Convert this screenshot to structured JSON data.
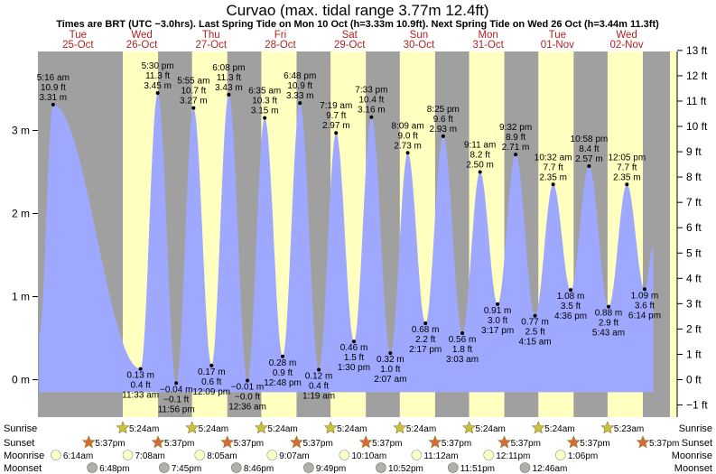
{
  "title": "Curvao (max. tidal range 3.77m 12.4ft)",
  "subtitle": "Times are BRT (UTC −3.0hrs). Last Spring Tide on Mon 10 Oct (h=3.33m 10.9ft). Next Spring Tide on Wed 26 Oct (h=3.44m 11.3ft)",
  "days": [
    {
      "dow": "Tue",
      "date": "25-Oct"
    },
    {
      "dow": "Wed",
      "date": "26-Oct"
    },
    {
      "dow": "Thu",
      "date": "27-Oct"
    },
    {
      "dow": "Fri",
      "date": "28-Oct"
    },
    {
      "dow": "Sat",
      "date": "29-Oct"
    },
    {
      "dow": "Sun",
      "date": "30-Oct"
    },
    {
      "dow": "Mon",
      "date": "31-Oct"
    },
    {
      "dow": "Tue",
      "date": "01-Nov"
    },
    {
      "dow": "Wed",
      "date": "02-Nov"
    }
  ],
  "row_labels": {
    "sunrise": "Sunrise",
    "sunset": "Sunset",
    "moonrise": "Moonrise",
    "moonset": "Moonset"
  },
  "colors": {
    "night": "#a0a0a0",
    "day": "#ffffc0",
    "water": "#9ea8ff",
    "sun": "#c9c240",
    "sunset_star": "#d86a3a",
    "moon_rise": "#ffffc8",
    "moon_set": "#b0b0a8",
    "day_label": "#b22222"
  },
  "chart_data": {
    "type": "area",
    "title": "Curvao (max. tidal range 3.77m 12.4ft)",
    "x_unit": "hours from 00:00 Tue 25-Oct",
    "xlim": [
      0,
      219
    ],
    "ylim_m": [
      -0.45,
      3.95
    ],
    "ylim_ft": [
      -1.48,
      12.96
    ],
    "y_ticks_m": [
      {
        "v": 0,
        "label": "0 m"
      },
      {
        "v": 1,
        "label": "1 m"
      },
      {
        "v": 2,
        "label": "2 m"
      },
      {
        "v": 3,
        "label": "3 m"
      }
    ],
    "y_ticks_ft": [
      {
        "v": -1,
        "label": "−1 ft"
      },
      {
        "v": 0,
        "label": "0 ft"
      },
      {
        "v": 1,
        "label": "1 ft"
      },
      {
        "v": 2,
        "label": "2 ft"
      },
      {
        "v": 3,
        "label": "3 ft"
      },
      {
        "v": 4,
        "label": "4 ft"
      },
      {
        "v": 5,
        "label": "5 ft"
      },
      {
        "v": 6,
        "label": "6 ft"
      },
      {
        "v": 7,
        "label": "7 ft"
      },
      {
        "v": 8,
        "label": "8 ft"
      },
      {
        "v": 9,
        "label": "9 ft"
      },
      {
        "v": 10,
        "label": "10 ft"
      },
      {
        "v": 11,
        "label": "11 ft"
      },
      {
        "v": 12,
        "label": "12 ft"
      },
      {
        "v": 13,
        "label": "13 ft"
      }
    ],
    "series": [
      {
        "values": [
          {
            "t": 5.27,
            "m": 3.31,
            "time": "5:16 am",
            "ft": "10.9 ft",
            "mlab": "3.31 m",
            "kind": "high"
          },
          {
            "t": 35.55,
            "m": 0.13,
            "time": "11:33 am",
            "ft": "0.4 ft",
            "mlab": "0.13 m",
            "kind": "low"
          },
          {
            "t": 41.5,
            "m": 3.45,
            "time": "5:30 pm",
            "ft": "11.3 ft",
            "mlab": "3.45 m",
            "kind": "high"
          },
          {
            "t": 47.93,
            "m": -0.04,
            "time": "11:56 pm",
            "ft": "−0.1 ft",
            "mlab": "−0.04 m",
            "kind": "low"
          },
          {
            "t": 53.92,
            "m": 3.27,
            "time": "5:55 am",
            "ft": "10.7 ft",
            "mlab": "3.27 m",
            "kind": "high"
          },
          {
            "t": 60.15,
            "m": 0.17,
            "time": "12:09 pm",
            "ft": "0.6 ft",
            "mlab": "0.17 m",
            "kind": "low"
          },
          {
            "t": 66.13,
            "m": 3.43,
            "time": "6:08 pm",
            "ft": "11.3 ft",
            "mlab": "3.43 m",
            "kind": "high"
          },
          {
            "t": 72.6,
            "m": -0.01,
            "time": "12:36 am",
            "ft": "−0.0 ft",
            "mlab": "−0.01 m",
            "kind": "low"
          },
          {
            "t": 78.58,
            "m": 3.15,
            "time": "6:35 am",
            "ft": "10.3 ft",
            "mlab": "3.15 m",
            "kind": "high"
          },
          {
            "t": 84.8,
            "m": 0.28,
            "time": "12:48 pm",
            "ft": "0.9 ft",
            "mlab": "0.28 m",
            "kind": "low"
          },
          {
            "t": 90.8,
            "m": 3.33,
            "time": "6:48 pm",
            "ft": "10.9 ft",
            "mlab": "3.33 m",
            "kind": "high"
          },
          {
            "t": 97.32,
            "m": 0.12,
            "time": "1:19 am",
            "ft": "0.4 ft",
            "mlab": "0.12 m",
            "kind": "low"
          },
          {
            "t": 103.32,
            "m": 2.97,
            "time": "7:19 am",
            "ft": "9.7 ft",
            "mlab": "2.97 m",
            "kind": "high"
          },
          {
            "t": 109.5,
            "m": 0.46,
            "time": "1:30 pm",
            "ft": "1.5 ft",
            "mlab": "0.46 m",
            "kind": "low"
          },
          {
            "t": 115.55,
            "m": 3.16,
            "time": "7:33 pm",
            "ft": "10.4 ft",
            "mlab": "3.16 m",
            "kind": "high"
          },
          {
            "t": 122.12,
            "m": 0.32,
            "time": "2:07 am",
            "ft": "1.0 ft",
            "mlab": "0.32 m",
            "kind": "low"
          },
          {
            "t": 128.15,
            "m": 2.73,
            "time": "8:09 am",
            "ft": "9.0 ft",
            "mlab": "2.73 m",
            "kind": "high"
          },
          {
            "t": 134.28,
            "m": 0.68,
            "time": "2:17 pm",
            "ft": "2.2 ft",
            "mlab": "0.68 m",
            "kind": "low"
          },
          {
            "t": 140.42,
            "m": 2.93,
            "time": "8:25 pm",
            "ft": "9.6 ft",
            "mlab": "2.93 m",
            "kind": "high"
          },
          {
            "t": 147.05,
            "m": 0.56,
            "time": "3:03 am",
            "ft": "1.8 ft",
            "mlab": "0.56 m",
            "kind": "low"
          },
          {
            "t": 153.18,
            "m": 2.5,
            "time": "9:11 am",
            "ft": "8.2 ft",
            "mlab": "2.50 m",
            "kind": "high"
          },
          {
            "t": 159.28,
            "m": 0.91,
            "time": "3:17 pm",
            "ft": "3.0 ft",
            "mlab": "0.91 m",
            "kind": "low"
          },
          {
            "t": 165.53,
            "m": 2.71,
            "time": "9:32 pm",
            "ft": "8.9 ft",
            "mlab": "2.71 m",
            "kind": "high"
          },
          {
            "t": 172.25,
            "m": 0.77,
            "time": "4:15 am",
            "ft": "2.5 ft",
            "mlab": "0.77 m",
            "kind": "low"
          },
          {
            "t": 178.53,
            "m": 2.35,
            "time": "10:32 am",
            "ft": "7.7 ft",
            "mlab": "2.35 m",
            "kind": "high"
          },
          {
            "t": 184.6,
            "m": 1.08,
            "time": "4:36 pm",
            "ft": "3.5 ft",
            "mlab": "1.08 m",
            "kind": "low"
          },
          {
            "t": 190.97,
            "m": 2.57,
            "time": "10:58 pm",
            "ft": "8.4 ft",
            "mlab": "2.57 m",
            "kind": "high"
          },
          {
            "t": 197.72,
            "m": 0.88,
            "time": "5:43 am",
            "ft": "2.9 ft",
            "mlab": "0.88 m",
            "kind": "low"
          },
          {
            "t": 204.08,
            "m": 2.35,
            "time": "12:05 pm",
            "ft": "7.7 ft",
            "mlab": "2.35 m",
            "kind": "high"
          },
          {
            "t": 210.23,
            "m": 1.09,
            "time": "6:14 pm",
            "ft": "3.6 ft",
            "mlab": "1.09 m",
            "kind": "low"
          }
        ]
      }
    ],
    "daylight": [
      {
        "rise": 29.4,
        "set": 41.62
      },
      {
        "rise": 53.4,
        "set": 65.62
      },
      {
        "rise": 77.4,
        "set": 89.62
      },
      {
        "rise": 101.4,
        "set": 113.62
      },
      {
        "rise": 125.4,
        "set": 137.62
      },
      {
        "rise": 149.4,
        "set": 161.62
      },
      {
        "rise": 173.4,
        "set": 185.62
      },
      {
        "rise": 197.38,
        "set": 209.62
      }
    ],
    "sunrise": [
      {
        "t": 29.4,
        "label": "5:24am"
      },
      {
        "t": 53.4,
        "label": "5:24am"
      },
      {
        "t": 77.4,
        "label": "5:24am"
      },
      {
        "t": 101.4,
        "label": "5:24am"
      },
      {
        "t": 125.4,
        "label": "5:24am"
      },
      {
        "t": 149.4,
        "label": "5:24am"
      },
      {
        "t": 173.4,
        "label": "5:24am"
      },
      {
        "t": 197.38,
        "label": "5:23am"
      }
    ],
    "sunset": [
      {
        "t": 17.62,
        "label": "5:37pm"
      },
      {
        "t": 41.62,
        "label": "5:37pm"
      },
      {
        "t": 65.62,
        "label": "5:37pm"
      },
      {
        "t": 89.62,
        "label": "5:37pm"
      },
      {
        "t": 113.62,
        "label": "5:37pm"
      },
      {
        "t": 137.62,
        "label": "5:37pm"
      },
      {
        "t": 161.62,
        "label": "5:37pm"
      },
      {
        "t": 185.62,
        "label": "5:37pm"
      },
      {
        "t": 209.62,
        "label": "5:37pm"
      }
    ],
    "moonrise": [
      {
        "t": 6.23,
        "label": "6:14am"
      },
      {
        "t": 31.13,
        "label": "7:08am"
      },
      {
        "t": 56.08,
        "label": "8:05am"
      },
      {
        "t": 81.12,
        "label": "9:07am"
      },
      {
        "t": 106.17,
        "label": "10:10am"
      },
      {
        "t": 131.2,
        "label": "11:12am"
      },
      {
        "t": 156.18,
        "label": "12:11pm"
      },
      {
        "t": 181.1,
        "label": "1:06pm"
      }
    ],
    "moonset": [
      {
        "t": 18.8,
        "label": "6:48pm"
      },
      {
        "t": 43.75,
        "label": "7:45pm"
      },
      {
        "t": 68.77,
        "label": "8:46pm"
      },
      {
        "t": 93.82,
        "label": "9:49pm"
      },
      {
        "t": 118.87,
        "label": "10:52pm"
      },
      {
        "t": 143.85,
        "label": "11:51pm"
      },
      {
        "t": 168.77,
        "label": "12:46am"
      }
    ]
  }
}
